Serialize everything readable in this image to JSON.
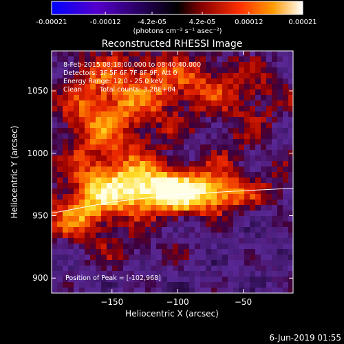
{
  "colorbar": {
    "ticks": [
      "-0.00021",
      "-0.00012",
      "-4.2e-05",
      "4.2e-05",
      "0.00012",
      "0.00021"
    ],
    "tick_values": [
      -0.00021,
      -0.00012,
      -4.2e-05,
      4.2e-05,
      0.00012,
      0.00021
    ],
    "range": [
      -0.00021,
      0.00021
    ],
    "units_label": "(photons cm⁻² s⁻¹ asec⁻²)",
    "colors": [
      "#0000ff",
      "#5500cc",
      "#000000",
      "#8a0000",
      "#ff3000",
      "#ff9a00",
      "#ffffff"
    ]
  },
  "chart_data": {
    "type": "heatmap",
    "title": "Reconstructed RHESSI Image",
    "xlabel": "Heliocentric X (arcsec)",
    "ylabel": "Heliocentric Y (arcsec)",
    "xlim": [
      -196,
      -12
    ],
    "ylim": [
      888,
      1082
    ],
    "x_ticks": [
      -150,
      -100,
      -50
    ],
    "y_ticks": [
      900,
      950,
      1000,
      1050
    ],
    "limb_line": {
      "x": [
        -196,
        -150,
        -100,
        -50,
        -12
      ],
      "y": [
        952,
        961,
        967,
        970,
        972
      ]
    },
    "bright_source": {
      "peak_x": -102,
      "peak_y": 968,
      "peak_value": 0.00021
    }
  },
  "annotations": {
    "time_range": "8-Feb-2015 08:18:00.000 to 08:40:40.000",
    "detectors": "Detectors: 3F 5F 6F 7F 8F 9F, Att 0",
    "energy": "Energy Range: 12.0 - 25.0 keV",
    "clean_method": "Clean",
    "total_counts": "Total counts: 3.28E+04",
    "peak": "Position of Peak = [-102,968]"
  },
  "footer": {
    "date": "6-Jun-2019 01:55"
  }
}
